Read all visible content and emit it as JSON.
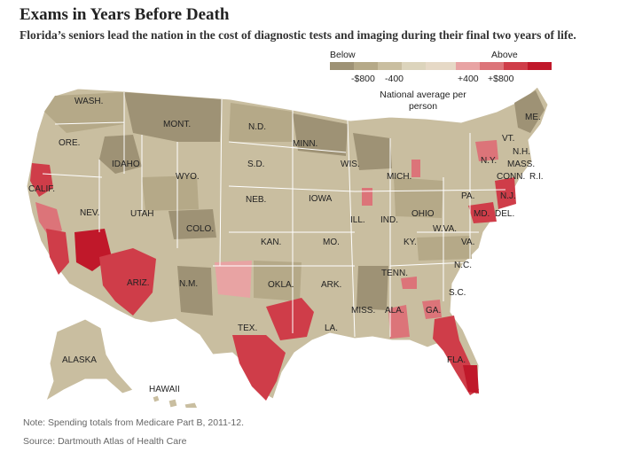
{
  "title": "Exams in Years Before Death",
  "subtitle": "Florida’s seniors lead the nation in the cost of diagnostic tests and imaging during their final two years of life.",
  "legend": {
    "below_label": "Below",
    "above_label": "Above",
    "ticks": [
      "-$800",
      "-400",
      "+400",
      "+$800"
    ],
    "description": "National average per person",
    "colors": [
      "#9e9275",
      "#b5a988",
      "#c9bea0",
      "#dcd4bc",
      "#e6d9c6",
      "#e8a3a3",
      "#dc7479",
      "#cf3d49",
      "#c0182a"
    ]
  },
  "states": [
    {
      "id": "wash",
      "name": "WASH."
    },
    {
      "id": "ore",
      "name": "ORE."
    },
    {
      "id": "calif",
      "name": "CALIF."
    },
    {
      "id": "nev",
      "name": "NEV."
    },
    {
      "id": "idaho",
      "name": "IDAHO"
    },
    {
      "id": "mont",
      "name": "MONT."
    },
    {
      "id": "wyo",
      "name": "WYO."
    },
    {
      "id": "utah",
      "name": "UTAH"
    },
    {
      "id": "colo",
      "name": "COLO."
    },
    {
      "id": "ariz",
      "name": "ARIZ."
    },
    {
      "id": "nm",
      "name": "N.M."
    },
    {
      "id": "nd",
      "name": "N.D."
    },
    {
      "id": "sd",
      "name": "S.D."
    },
    {
      "id": "neb",
      "name": "NEB."
    },
    {
      "id": "kan",
      "name": "KAN."
    },
    {
      "id": "okla",
      "name": "OKLA."
    },
    {
      "id": "tex",
      "name": "TEX."
    },
    {
      "id": "minn",
      "name": "MINN."
    },
    {
      "id": "iowa",
      "name": "IOWA"
    },
    {
      "id": "mo",
      "name": "MO."
    },
    {
      "id": "ark",
      "name": "ARK."
    },
    {
      "id": "la",
      "name": "LA."
    },
    {
      "id": "wis",
      "name": "WIS."
    },
    {
      "id": "ill",
      "name": "ILL."
    },
    {
      "id": "mich",
      "name": "MICH."
    },
    {
      "id": "ind",
      "name": "IND."
    },
    {
      "id": "ohio",
      "name": "OHIO"
    },
    {
      "id": "ky",
      "name": "KY."
    },
    {
      "id": "tenn",
      "name": "TENN."
    },
    {
      "id": "miss",
      "name": "MISS."
    },
    {
      "id": "ala",
      "name": "ALA."
    },
    {
      "id": "ga",
      "name": "GA."
    },
    {
      "id": "fla",
      "name": "FLA."
    },
    {
      "id": "sc",
      "name": "S.C."
    },
    {
      "id": "nc",
      "name": "N.C."
    },
    {
      "id": "va",
      "name": "VA."
    },
    {
      "id": "wva",
      "name": "W.VA."
    },
    {
      "id": "pa",
      "name": "PA."
    },
    {
      "id": "ny",
      "name": "N.Y."
    },
    {
      "id": "vt",
      "name": "VT."
    },
    {
      "id": "nh",
      "name": "N.H."
    },
    {
      "id": "me",
      "name": "ME."
    },
    {
      "id": "mass",
      "name": "MASS."
    },
    {
      "id": "ri",
      "name": "R.I."
    },
    {
      "id": "conn",
      "name": "CONN."
    },
    {
      "id": "nj",
      "name": "N.J."
    },
    {
      "id": "md",
      "name": "MD."
    },
    {
      "id": "del",
      "name": "DEL."
    },
    {
      "id": "alaska",
      "name": "ALASKA"
    },
    {
      "id": "hawaii",
      "name": "HAWAII"
    }
  ],
  "note": "Note: Spending totals from Medicare Part B, 2011-12.",
  "source": "Source: Dartmouth Atlas of Health Care"
}
